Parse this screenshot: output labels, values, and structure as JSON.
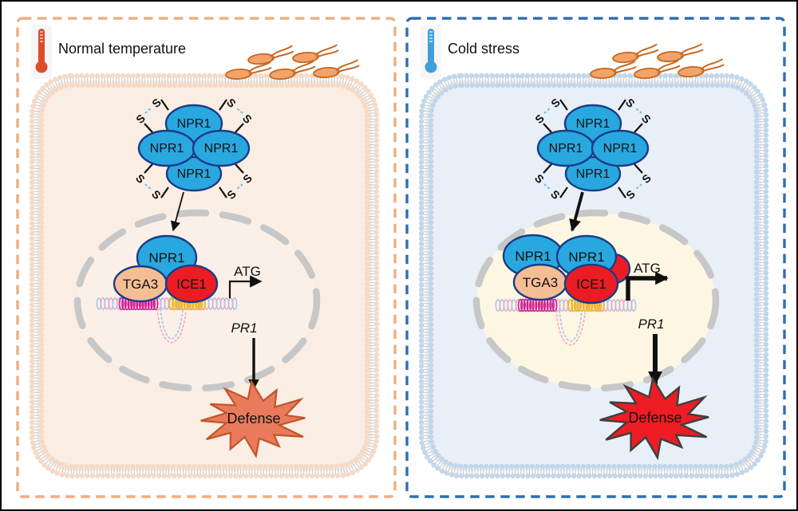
{
  "figure": {
    "type": "signaling-pathway-diagram",
    "panels": [
      {
        "condition": "normal",
        "title": "Normal temperature",
        "thermometer_icon": "thermometer-warm-icon",
        "border_color": "#EFAD7F",
        "cell_fill": "#FAEDE4",
        "membrane_color": "#F5DAC6",
        "npr1": "NPR1",
        "s": "S",
        "tga3": "TGA3",
        "ice1": "ICE1",
        "atg": "ATG",
        "gene": "PR1",
        "defense": "Defense",
        "defense_fill": "#E97B5C",
        "defense_stroke": "#C35426"
      },
      {
        "condition": "cold",
        "title": "Cold stress",
        "thermometer_icon": "thermometer-cold-icon",
        "border_color": "#2E6EB5",
        "cell_fill": "#E9EFF7",
        "membrane_color": "#C3D6EA",
        "npr1": "NPR1",
        "s": "S",
        "tga3": "TGA3",
        "ice1": "ICE1",
        "atg": "ATG",
        "gene": "PR1",
        "defense": "Defense",
        "defense_fill": "#EE1C24",
        "defense_stroke": "#3F3F3F"
      }
    ]
  }
}
